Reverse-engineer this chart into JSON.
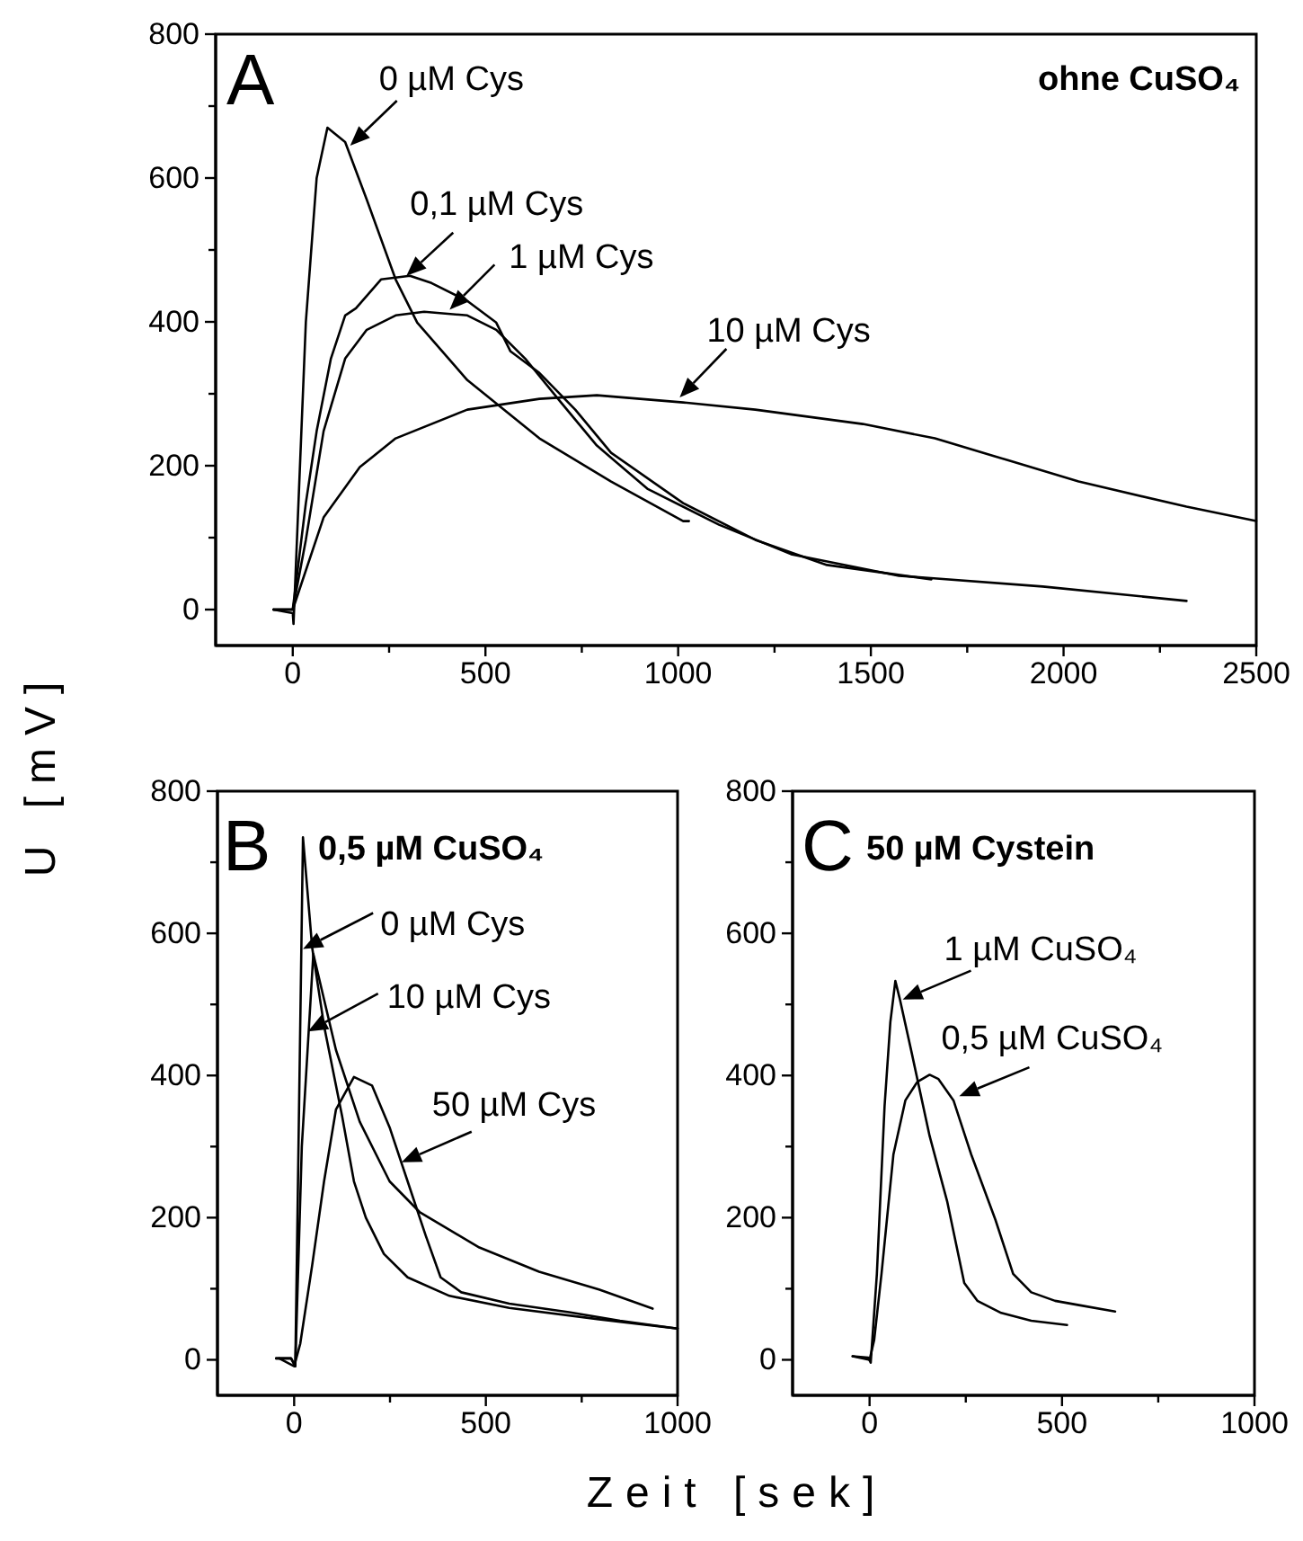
{
  "chart_data": [
    {
      "type": "line",
      "title": "ohne CuSO₄",
      "ylabel": "U [mV]",
      "xlim": [
        -200,
        2500
      ],
      "ylim": [
        -50,
        800
      ],
      "xticks": [
        0,
        {
          "value": 250,
          "label": null
        },
        500,
        {
          "value": 750,
          "label": null
        },
        1000,
        {
          "value": 1250,
          "label": null
        },
        1500,
        {
          "value": 1750,
          "label": null
        },
        2000,
        {
          "value": 2250,
          "label": null
        },
        2500
      ],
      "yticks": [
        0,
        {
          "value": 100,
          "label": null
        },
        200,
        {
          "value": 300,
          "label": null
        },
        400,
        {
          "value": 500,
          "label": null
        },
        600,
        {
          "value": 700,
          "label": null
        },
        800
      ],
      "marker": "none",
      "line_style": "solid",
      "annotations": [
        "A",
        {
          "text": "0 µM Cys",
          "x": 149,
          "y": 645
        },
        {
          "text": "0,1 µM Cys",
          "x": 295,
          "y": 464
        },
        {
          "text": "1 µM Cys",
          "x": 407,
          "y": 417
        },
        {
          "text": "10 µM Cys",
          "x": 1004,
          "y": 295
        }
      ],
      "series": [
        {
          "color": "#000000",
          "x": [
            -50,
            0,
            2,
            34,
            62,
            90,
            136,
            192,
            267,
            323,
            453,
            640,
            826,
            1013,
            1028
          ],
          "values": [
            0,
            -5,
            -20,
            400,
            600,
            670,
            650,
            570,
            459,
            399,
            319,
            238,
            178,
            123,
            123
          ]
        },
        {
          "color": "#000000",
          "x": [
            -50,
            0,
            34,
            62,
            99,
            136,
            164,
            229,
            304,
            360,
            453,
            528,
            565,
            640,
            733,
            826,
            1013,
            1200,
            1386,
            1657
          ],
          "values": [
            0,
            0,
            148,
            248,
            349,
            409,
            419,
            459,
            464,
            454,
            429,
            399,
            359,
            329,
            278,
            218,
            148,
            97,
            62,
            42
          ]
        },
        {
          "color": "#000000",
          "x": [
            -50,
            0,
            34,
            80,
            136,
            192,
            267,
            341,
            453,
            528,
            603,
            696,
            789,
            920,
            1106,
            1293,
            1573,
            1946,
            2319
          ],
          "values": [
            0,
            0,
            97,
            248,
            349,
            389,
            409,
            414,
            409,
            389,
            349,
            288,
            228,
            168,
            118,
            77,
            47,
            32,
            12
          ]
        },
        {
          "color": "#000000",
          "x": [
            -50,
            0,
            80,
            174,
            267,
            453,
            640,
            789,
            1013,
            1200,
            1479,
            1666,
            1853,
            2039,
            2319,
            2500
          ],
          "values": [
            0,
            0,
            128,
            198,
            238,
            278,
            293,
            298,
            288,
            278,
            258,
            238,
            208,
            178,
            143,
            123
          ]
        }
      ]
    },
    {
      "type": "line",
      "title": "0,5 µM CuSO₄",
      "xlabel": "Zeit [sek]",
      "xlim": [
        -200,
        1000
      ],
      "ylim": [
        -50,
        800
      ],
      "xticks": [
        0,
        {
          "value": 250,
          "label": null
        },
        500,
        {
          "value": 750,
          "label": null
        },
        1000
      ],
      "yticks": [
        0,
        {
          "value": 100,
          "label": null
        },
        200,
        {
          "value": 300,
          "label": null
        },
        400,
        {
          "value": 500,
          "label": null
        },
        600,
        {
          "value": 700,
          "label": null
        },
        800
      ],
      "marker": "none",
      "line_style": "solid",
      "annotations": [
        "B",
        {
          "text": "0 µM Cys",
          "x": 23,
          "y": 578
        },
        {
          "text": "10 µM Cys",
          "x": 36,
          "y": 462
        },
        {
          "text": "50 µM Cys",
          "x": 280,
          "y": 278
        }
      ],
      "series": [
        {
          "color": "#000000",
          "x": [
            -47,
            -8,
            3,
            23,
            47,
            78,
            125,
            156,
            187,
            234,
            296,
            405,
            561,
            795,
            1000
          ],
          "values": [
            2,
            2,
            -9,
            735,
            580,
            470,
            343,
            251,
            200,
            149,
            116,
            90,
            73,
            57,
            44
          ]
        },
        {
          "color": "#000000",
          "x": [
            -47,
            -8,
            3,
            20,
            50,
            109,
            171,
            249,
            327,
            405,
            483,
            639,
            795,
            935
          ],
          "values": [
            2,
            2,
            -9,
            300,
            571,
            436,
            335,
            251,
            208,
            183,
            158,
            124,
            99,
            72
          ]
        },
        {
          "color": "#000000",
          "x": [
            -39,
            0,
            16,
            47,
            78,
            109,
            156,
            203,
            249,
            296,
            343,
            382,
            436,
            561,
            717,
            850,
            1000
          ],
          "values": [
            2,
            -9,
            23,
            133,
            251,
            352,
            398,
            386,
            327,
            251,
            175,
            116,
            95,
            79,
            67,
            55,
            44
          ]
        }
      ]
    },
    {
      "type": "line",
      "title": "50 µM Cystein",
      "xlim": [
        -200,
        1000
      ],
      "ylim": [
        -50,
        800
      ],
      "xticks": [
        0,
        {
          "value": 250,
          "label": null
        },
        500,
        {
          "value": 750,
          "label": null
        },
        1000
      ],
      "yticks": [
        0,
        {
          "value": 100,
          "label": null
        },
        200,
        {
          "value": 300,
          "label": null
        },
        400,
        {
          "value": 500,
          "label": null
        },
        600,
        {
          "value": 700,
          "label": null
        },
        800
      ],
      "marker": "none",
      "line_style": "solid",
      "annotations": [
        "C",
        {
          "text": "1 µM CuSO₄",
          "x": 86,
          "y": 507
        },
        {
          "text": "0,5 µM CuSO₄",
          "x": 233,
          "y": 371
        }
      ],
      "series": [
        {
          "color": "#000000",
          "x": [
            -44,
            -3,
            3,
            19,
            39,
            54,
            67,
            78,
            109,
            156,
            202,
            246,
            280,
            342,
            420,
            513
          ],
          "values": [
            5,
            3,
            -4,
            121,
            357,
            475,
            533,
            509,
            433,
            315,
            222,
            108,
            83,
            66,
            55,
            49
          ]
        },
        {
          "color": "#000000",
          "x": [
            -44,
            0,
            12,
            31,
            62,
            93,
            124,
            156,
            179,
            218,
            264,
            327,
            373,
            420,
            482,
            544,
            638
          ],
          "values": [
            5,
            0,
            28,
            121,
            289,
            365,
            391,
            401,
            395,
            365,
            289,
            197,
            121,
            95,
            83,
            77,
            68
          ]
        }
      ]
    }
  ]
}
